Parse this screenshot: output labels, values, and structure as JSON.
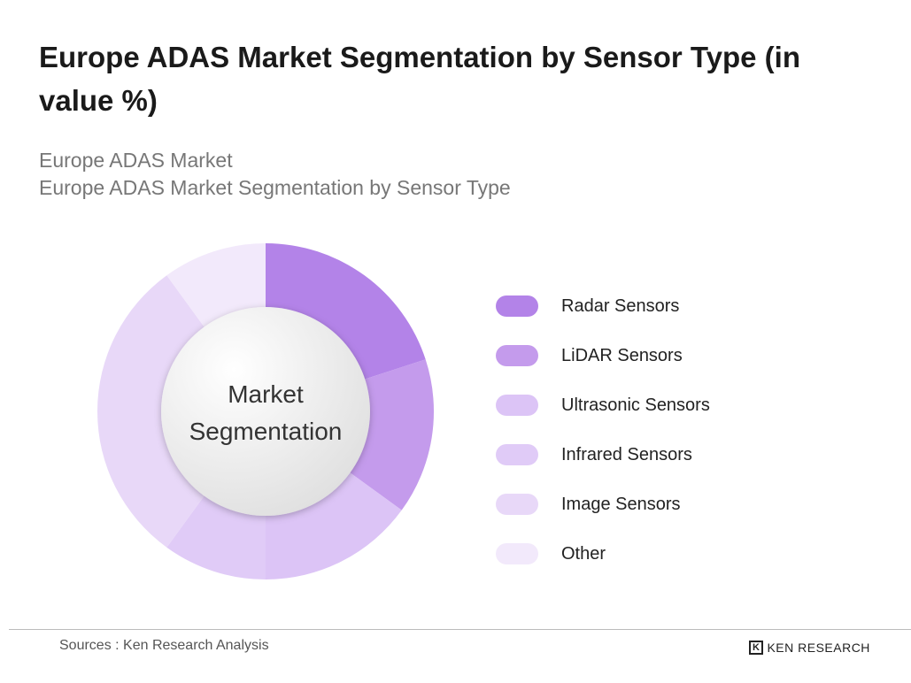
{
  "chart_data": {
    "type": "donut",
    "title": "Europe ADAS Market Segmentation by Sensor Type (in value %)",
    "subtitle_lines": [
      "Europe ADAS Market",
      "Europe ADAS Market Segmentation by Sensor Type"
    ],
    "center_label": "Market Segmentation",
    "categories": [
      "Radar Sensors",
      "LiDAR Sensors",
      "Ultrasonic Sensors",
      "Infrared Sensors",
      "Image Sensors",
      "Other"
    ],
    "values": [
      20,
      15,
      15,
      10,
      30,
      10
    ],
    "colors": [
      "#b383e8",
      "#c49bec",
      "#dcc4f6",
      "#e0cbf7",
      "#e8d8f8",
      "#f2e9fb"
    ]
  },
  "footer": {
    "source": "Sources : Ken Research Analysis",
    "brand": "KEN RESEARCH"
  }
}
